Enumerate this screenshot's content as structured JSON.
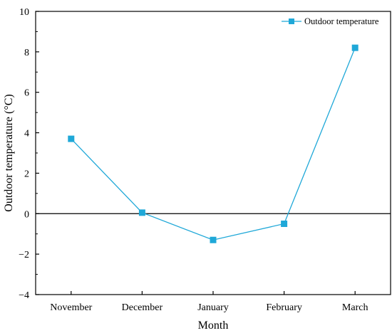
{
  "chart_data": {
    "type": "line",
    "title": "",
    "xlabel": "Month",
    "ylabel": "Outdoor temperature (°C)",
    "categories": [
      "November",
      "December",
      "January",
      "February",
      "March"
    ],
    "series": [
      {
        "name": "Outdoor temperature",
        "values": [
          3.7,
          0.05,
          -1.3,
          -0.5,
          8.2
        ],
        "color": "#1fa8d8",
        "marker": "square"
      }
    ],
    "ylim": [
      -4,
      10
    ],
    "yticks": [
      -4,
      -2,
      0,
      2,
      4,
      6,
      8,
      10
    ],
    "ytick_labels": [
      "−4",
      "−2",
      "0",
      "2",
      "4",
      "6",
      "8",
      "10"
    ],
    "zero_line": true,
    "grid": false,
    "legend": "top-right"
  }
}
